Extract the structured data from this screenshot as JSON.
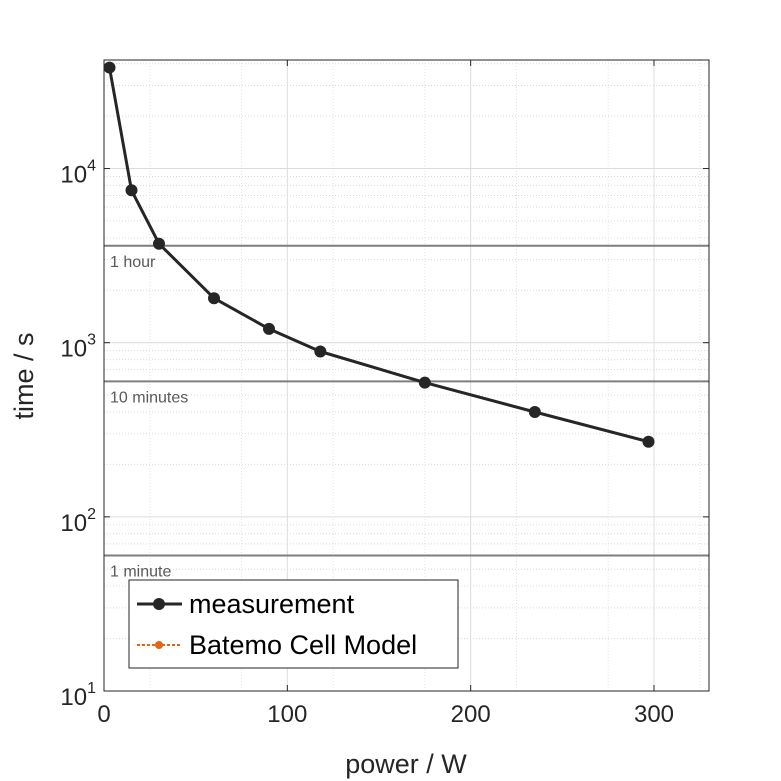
{
  "chart_data": {
    "type": "line",
    "xlabel": "power / W",
    "ylabel": "time / s",
    "xlim": [
      0,
      330
    ],
    "ylim": [
      10,
      42000
    ],
    "yscale": "log",
    "x_ticks": [
      0,
      100,
      200,
      300
    ],
    "y_ticks": [
      {
        "value": 10,
        "base": "10",
        "exp": "1"
      },
      {
        "value": 100,
        "base": "10",
        "exp": "2"
      },
      {
        "value": 1000,
        "base": "10",
        "exp": "3"
      },
      {
        "value": 10000,
        "base": "10",
        "exp": "4"
      }
    ],
    "grid": true,
    "legend_position": "bottom-left",
    "series": [
      {
        "name": "measurement",
        "color": "#262626",
        "x": [
          3,
          15,
          30,
          60,
          90,
          118,
          175,
          235,
          297
        ],
        "y": [
          38000,
          7500,
          3700,
          1800,
          1200,
          890,
          590,
          400,
          270
        ]
      },
      {
        "name": "Batemo Cell Model",
        "color": "#e36414",
        "x": [],
        "y": []
      }
    ],
    "reference_lines": [
      {
        "y": 3600,
        "label": "1 hour"
      },
      {
        "y": 600,
        "label": "10 minutes"
      },
      {
        "y": 60,
        "label": "1 minute"
      }
    ]
  }
}
